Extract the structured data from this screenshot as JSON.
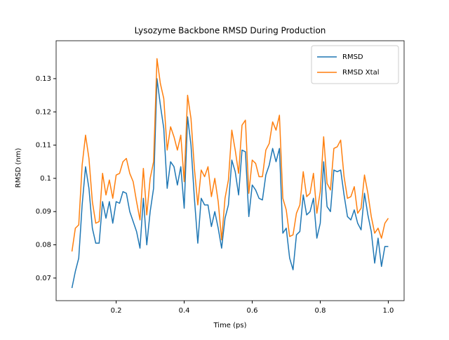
{
  "chart_data": {
    "type": "line",
    "title": "Lysozyme Backbone RMSD During Production",
    "xlabel": "Time (ps)",
    "ylabel": "RMSD (nm)",
    "x": [
      0.07,
      0.08,
      0.09,
      0.1,
      0.11,
      0.12,
      0.13,
      0.14,
      0.15,
      0.16,
      0.17,
      0.18,
      0.19,
      0.2,
      0.21,
      0.22,
      0.23,
      0.24,
      0.25,
      0.26,
      0.27,
      0.28,
      0.29,
      0.3,
      0.31,
      0.32,
      0.33,
      0.34,
      0.35,
      0.36,
      0.37,
      0.38,
      0.39,
      0.4,
      0.41,
      0.42,
      0.43,
      0.44,
      0.45,
      0.46,
      0.47,
      0.48,
      0.49,
      0.5,
      0.51,
      0.52,
      0.53,
      0.54,
      0.55,
      0.56,
      0.57,
      0.58,
      0.59,
      0.6,
      0.61,
      0.62,
      0.63,
      0.64,
      0.65,
      0.66,
      0.67,
      0.68,
      0.69,
      0.7,
      0.71,
      0.72,
      0.73,
      0.74,
      0.75,
      0.76,
      0.77,
      0.78,
      0.79,
      0.8,
      0.81,
      0.82,
      0.83,
      0.84,
      0.85,
      0.86,
      0.87,
      0.88,
      0.89,
      0.9,
      0.91,
      0.92,
      0.93,
      0.94,
      0.95,
      0.96,
      0.97,
      0.98,
      0.99,
      1.0
    ],
    "series": [
      {
        "name": "RMSD",
        "color": "#1f77b4",
        "values": [
          0.067,
          0.072,
          0.076,
          0.092,
          0.1035,
          0.097,
          0.085,
          0.0805,
          0.0805,
          0.093,
          0.088,
          0.093,
          0.0865,
          0.093,
          0.0925,
          0.096,
          0.0955,
          0.09,
          0.087,
          0.084,
          0.079,
          0.094,
          0.08,
          0.09,
          0.097,
          0.13,
          0.122,
          0.115,
          0.097,
          0.105,
          0.1035,
          0.098,
          0.1035,
          0.091,
          0.1185,
          0.11,
          0.094,
          0.0805,
          0.094,
          0.092,
          0.092,
          0.0855,
          0.09,
          0.085,
          0.079,
          0.088,
          0.092,
          0.1055,
          0.102,
          0.095,
          0.1085,
          0.108,
          0.0885,
          0.098,
          0.0965,
          0.094,
          0.0935,
          0.101,
          0.104,
          0.109,
          0.105,
          0.109,
          0.0835,
          0.085,
          0.076,
          0.0725,
          0.083,
          0.084,
          0.095,
          0.089,
          0.09,
          0.094,
          0.082,
          0.0865,
          0.105,
          0.0915,
          0.09,
          0.1025,
          0.102,
          0.1025,
          0.095,
          0.0885,
          0.0875,
          0.0905,
          0.0865,
          0.0845,
          0.0955,
          0.089,
          0.084,
          0.0745,
          0.082,
          0.0735,
          0.0795,
          0.0795
        ]
      },
      {
        "name": "RMSD Xtal",
        "color": "#ff7f0e",
        "values": [
          0.078,
          0.085,
          0.086,
          0.104,
          0.113,
          0.106,
          0.093,
          0.0865,
          0.087,
          0.1015,
          0.095,
          0.0995,
          0.094,
          0.101,
          0.1015,
          0.105,
          0.106,
          0.1015,
          0.099,
          0.093,
          0.0875,
          0.103,
          0.089,
          0.1,
          0.105,
          0.136,
          0.1285,
          0.124,
          0.1085,
          0.1155,
          0.1125,
          0.1085,
          0.113,
          0.099,
          0.125,
          0.118,
          0.103,
          0.092,
          0.1025,
          0.1005,
          0.1035,
          0.0945,
          0.1,
          0.093,
          0.0815,
          0.094,
          0.0995,
          0.1145,
          0.1085,
          0.1015,
          0.116,
          0.1175,
          0.0955,
          0.1055,
          0.1045,
          0.1005,
          0.1005,
          0.1085,
          0.1105,
          0.117,
          0.1145,
          0.119,
          0.094,
          0.0905,
          0.0825,
          0.083,
          0.0895,
          0.092,
          0.102,
          0.0945,
          0.0955,
          0.1015,
          0.0895,
          0.096,
          0.1125,
          0.0985,
          0.0965,
          0.109,
          0.1095,
          0.1115,
          0.1005,
          0.094,
          0.0945,
          0.0975,
          0.0895,
          0.091,
          0.101,
          0.0955,
          0.0885,
          0.0835,
          0.085,
          0.082,
          0.0865,
          0.088
        ]
      }
    ],
    "xlim": [
      0.0235,
      1.0465
    ],
    "ylim": [
      0.0632,
      0.1414
    ],
    "xticks": [
      0.2,
      0.4,
      0.6,
      0.8,
      {
        "value": 1,
        "label": "1.0"
      }
    ],
    "yticks": [
      0.07,
      0.08,
      0.09,
      0.1,
      0.11,
      0.12,
      0.13
    ],
    "legend": "upper right",
    "grid": false
  }
}
